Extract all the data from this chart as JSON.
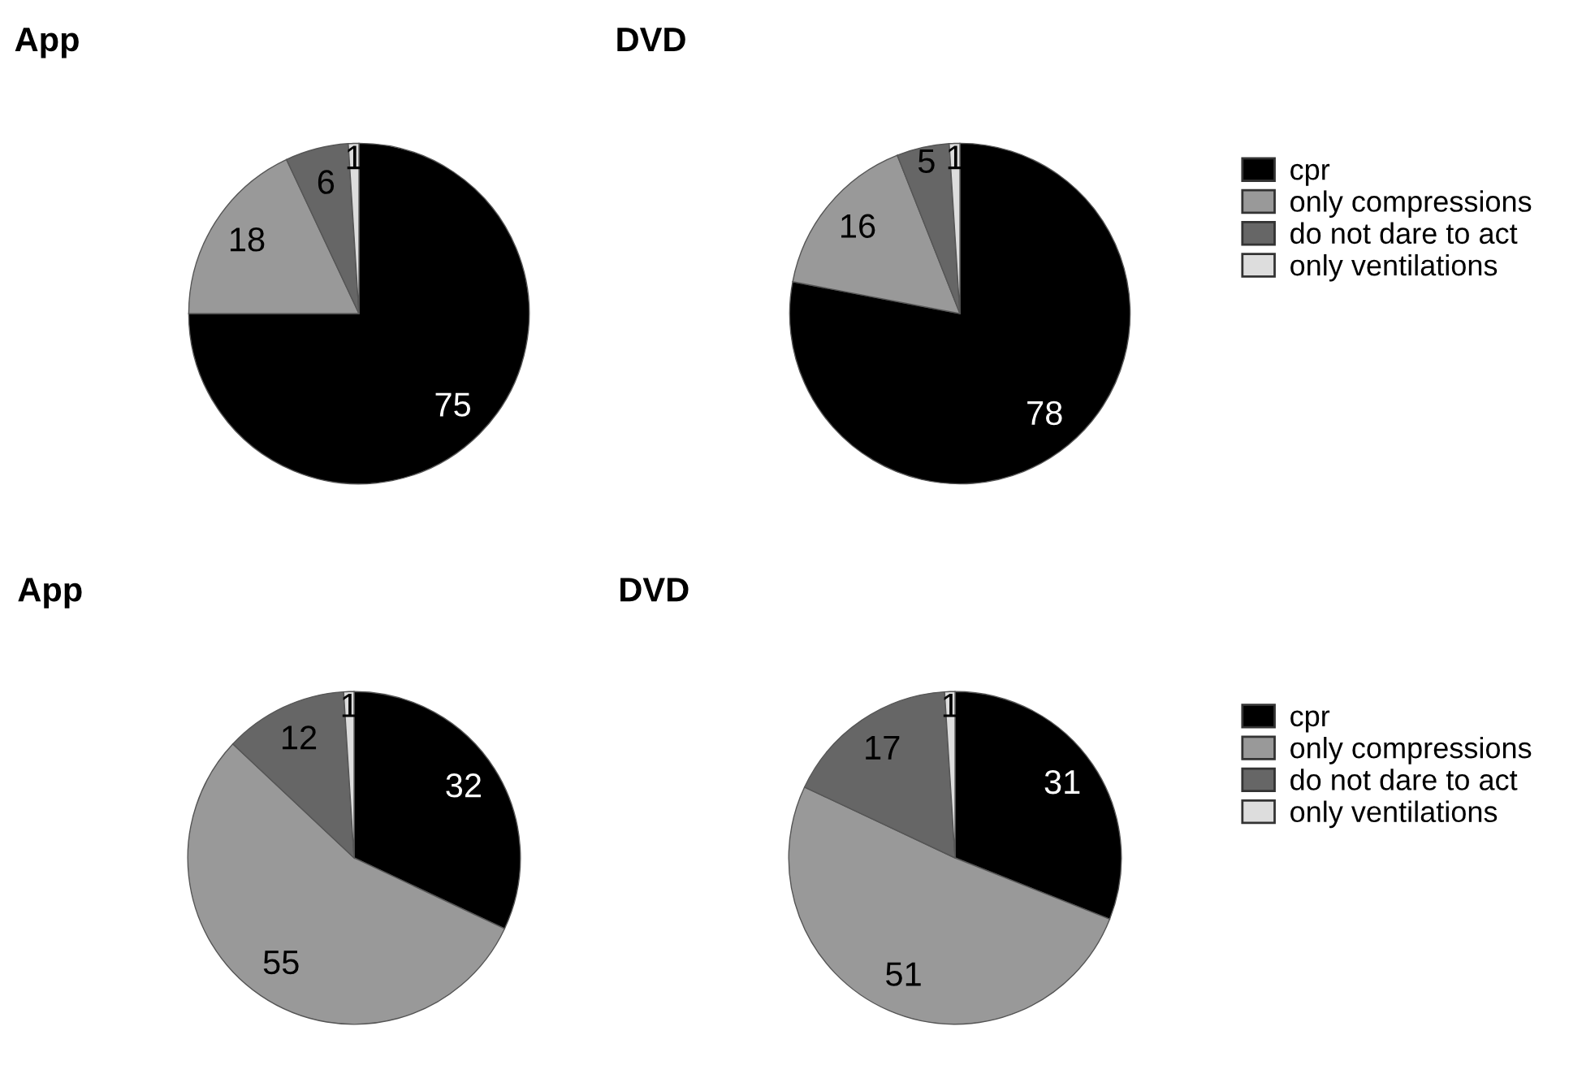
{
  "chart_data": [
    {
      "type": "pie",
      "title": "App",
      "categories": [
        "cpr",
        "only compressions",
        "do not dare to act",
        "only ventilations"
      ],
      "values": [
        75,
        18,
        6,
        1
      ],
      "colors": [
        "#000000",
        "#999999",
        "#666666",
        "#dddddd"
      ],
      "data_labels": true,
      "legend": "right"
    },
    {
      "type": "pie",
      "title": "DVD",
      "categories": [
        null,
        null,
        null,
        null
      ],
      "values": [
        78,
        16,
        5,
        1
      ],
      "colors": [
        "#000000",
        "#999999",
        "#666666",
        "#dddddd"
      ],
      "data_labels": true
    },
    {
      "type": "pie",
      "title": "App",
      "categories": [
        "cpr",
        "only compressions",
        "do not dare to act",
        "only ventilations"
      ],
      "values": [
        32,
        55,
        12,
        1
      ],
      "colors": [
        "#000000",
        "#999999",
        "#666666",
        "#dddddd"
      ],
      "data_labels": true,
      "legend": "right"
    },
    {
      "type": "pie",
      "title": "DVD",
      "categories": [
        null,
        null,
        null,
        null
      ],
      "values": [
        31,
        51,
        17,
        1
      ],
      "colors": [
        "#000000",
        "#999999",
        "#666666",
        "#dddddd"
      ],
      "data_labels": true
    }
  ]
}
